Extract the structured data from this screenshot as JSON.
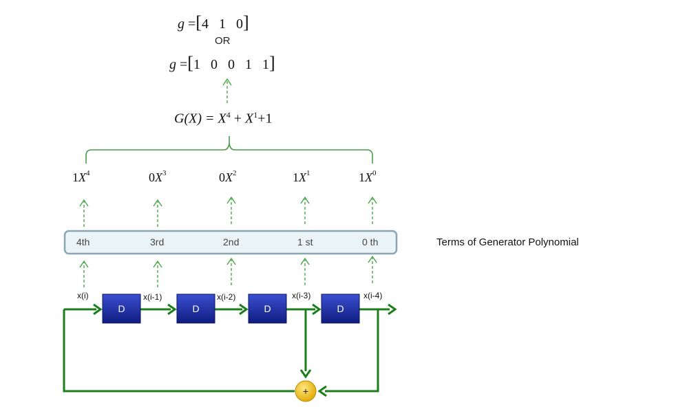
{
  "equations": {
    "g_label": "g",
    "equals": "=",
    "g_vector_short": [
      "4",
      "1",
      "0"
    ],
    "or_text": "OR",
    "g_vector_binary": [
      "1",
      "0",
      "0",
      "1",
      "1"
    ],
    "G_lhs": "G(X) = ",
    "G_rhs_terms": [
      {
        "base": "X",
        "exp": "4"
      },
      {
        "base": "X",
        "exp": "1"
      }
    ],
    "G_const": "+1"
  },
  "terms": [
    {
      "coef": "1",
      "base": "X",
      "exp": "4"
    },
    {
      "coef": "0",
      "base": "X",
      "exp": "3"
    },
    {
      "coef": "0",
      "base": "X",
      "exp": "2"
    },
    {
      "coef": "1",
      "base": "X",
      "exp": "1"
    },
    {
      "coef": "1",
      "base": "X",
      "exp": "0"
    }
  ],
  "degree_labels": [
    "4th",
    "3rd",
    "2nd",
    "1 st",
    "0 th"
  ],
  "side_label": "Terms of Generator Polynomial",
  "signals": [
    "x(i)",
    "x(i-1)",
    "x(i-2)",
    "x(i-3)",
    "x(i-4)"
  ],
  "delay_label": "D",
  "adder_symbol": "+",
  "colors": {
    "wire": "#1a7f1a",
    "dashed": "#3aa13a",
    "delay_fill": "#1a2a9c",
    "box_fill": "#eaf3f6",
    "box_stroke": "#8aa6b1",
    "adder_fill": "#f2c200"
  }
}
